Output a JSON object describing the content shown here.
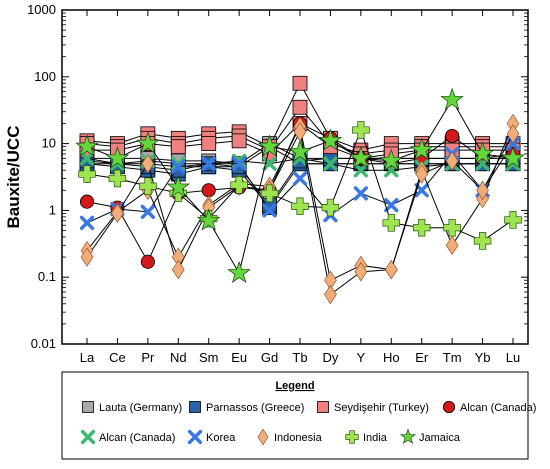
{
  "chart_data": {
    "type": "line",
    "yscale": "log",
    "ylim": [
      0.01,
      1000
    ],
    "ylabel": "Bauxite/UCC",
    "xlabel": "",
    "yticks": [
      "0.01",
      "0.1",
      "1",
      "10",
      "100",
      "1000"
    ],
    "categories": [
      "La",
      "Ce",
      "Pr",
      "Nd",
      "Sm",
      "Eu",
      "Gd",
      "Tb",
      "Dy",
      "Y",
      "Ho",
      "Er",
      "Tm",
      "Yb",
      "Lu"
    ],
    "legend": {
      "title": "Legend",
      "placement": "bottom"
    },
    "series": [
      {
        "name": "Lauta (Germany)",
        "marker": "square",
        "color": "#a8a8a8",
        "samples": [
          [
            5,
            5,
            5,
            4.5,
            4.5,
            4.5,
            9,
            5,
            5,
            5,
            5,
            5,
            5,
            5,
            5
          ],
          [
            6,
            6,
            6,
            5.5,
            5.5,
            5,
            10,
            6,
            6,
            6,
            6,
            6,
            6,
            6,
            6
          ]
        ]
      },
      {
        "name": "Parnassos (Greece)",
        "marker": "square",
        "color": "#2a64a8",
        "samples": [
          [
            5,
            4.5,
            4,
            3.5,
            4.5,
            4,
            1.1,
            5,
            5,
            5,
            5,
            5,
            5,
            5,
            5
          ],
          [
            5.5,
            5,
            4.5,
            4,
            5,
            4.5,
            1.2,
            5.5,
            6,
            6,
            6,
            6,
            6,
            6,
            6
          ]
        ]
      },
      {
        "name": "Seydişehir (Turkey)",
        "marker": "square",
        "color": "#ee8080",
        "samples": [
          [
            11,
            10,
            14,
            12,
            14,
            15,
            9,
            80,
            12,
            8,
            10,
            10,
            10,
            10,
            10
          ],
          [
            10,
            9,
            12,
            10,
            12,
            13,
            8,
            35,
            10,
            7,
            8,
            9,
            9,
            9,
            9
          ],
          [
            8,
            8,
            10,
            9,
            10,
            11,
            7,
            20,
            9,
            6,
            7,
            8,
            8,
            8,
            8
          ]
        ]
      },
      {
        "name": "Alcan (Canada)",
        "marker": "circle",
        "color": "#d21818",
        "samples": [
          [
            1.35,
            1.1,
            0.17,
            1.8,
            2,
            2.2,
            2,
            20,
            12,
            6,
            5,
            6,
            13,
            6,
            7
          ]
        ]
      },
      {
        "name": "Alcan (Canada)",
        "marker": "x",
        "color": "#3db870",
        "samples": [
          [
            6,
            5,
            5.5,
            5,
            5,
            5.5,
            5,
            6,
            5,
            4,
            4,
            4.5,
            5,
            5,
            5
          ]
        ]
      },
      {
        "name": "Korea",
        "marker": "x",
        "color": "#3a78e6",
        "samples": [
          [
            0.65,
            1.05,
            0.95,
            4.5,
            5,
            5,
            1,
            3,
            0.85,
            1.8,
            1.2,
            2,
            7,
            2,
            10
          ]
        ]
      },
      {
        "name": "Indonesia",
        "marker": "diamond",
        "color": "#f0ad7a",
        "samples": [
          [
            0.25,
            0.95,
            2,
            0.2,
            1.2,
            2.5,
            2.3,
            18,
            0.09,
            0.15,
            0.13,
            4,
            0.3,
            1.5,
            20
          ],
          [
            0.2,
            0.9,
            5,
            0.13,
            1.1,
            2.3,
            2,
            15,
            0.055,
            0.12,
            0.13,
            3.5,
            5.5,
            2,
            14
          ]
        ]
      },
      {
        "name": "India",
        "marker": "plus",
        "color": "#9de450",
        "samples": [
          [
            3.5,
            3,
            2.3,
            1.8,
            0.75,
            2.4,
            1.8,
            1.15,
            1.1,
            16,
            0.65,
            0.55,
            0.55,
            0.35,
            0.72
          ]
        ]
      },
      {
        "name": "Jamaica",
        "marker": "star",
        "color": "#63d63c",
        "samples": [
          [
            9,
            6,
            10,
            2.2,
            0.7,
            0.115,
            9,
            7.5,
            11,
            6,
            5.5,
            8,
            45,
            7,
            6
          ]
        ]
      }
    ]
  }
}
